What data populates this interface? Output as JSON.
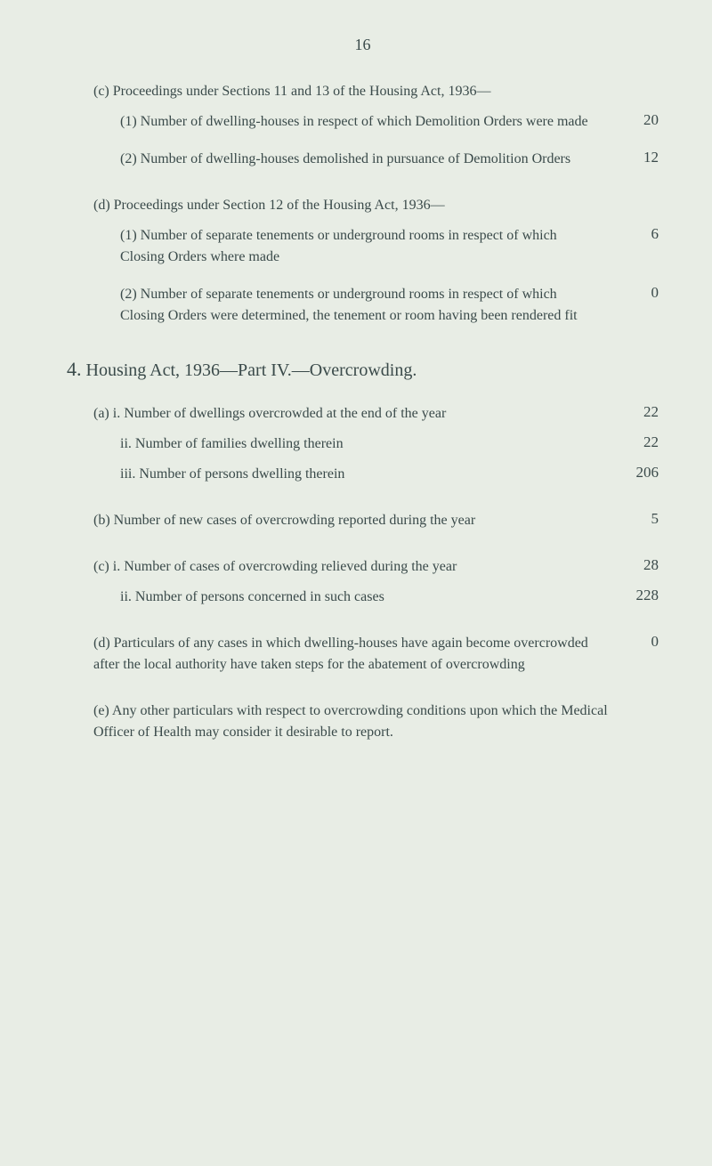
{
  "page_number": "16",
  "section_c": {
    "label": "(c)",
    "title": "Proceedings under Sections 11 and 13 of the Housing Act, 1936—",
    "items": [
      {
        "label": "(1)",
        "text": "Number of dwelling-houses in respect of which Demolition Orders were made",
        "value": "20"
      },
      {
        "label": "(2)",
        "text": "Number of dwelling-houses demolished in pursuance of Demolition Orders",
        "value": "12"
      }
    ]
  },
  "section_d": {
    "label": "(d)",
    "title": "Proceedings under Section 12 of the Housing Act, 1936—",
    "items": [
      {
        "label": "(1)",
        "text": "Number of separate tenements or underground rooms in respect of which Closing Orders where made",
        "value": "6"
      },
      {
        "label": "(2)",
        "text": "Number of separate tenements or underground rooms in respect of which Closing Orders were determined, the tenement or room having been rendered fit",
        "value": "0"
      }
    ]
  },
  "section_4": {
    "number": "4.",
    "title": "Housing Act, 1936—Part IV.—Overcrowding.",
    "sub_a": {
      "label": "(a)",
      "items": [
        {
          "label": "i.",
          "text": "Number of dwellings overcrowded at the end of the year",
          "value": "22"
        },
        {
          "label": "ii.",
          "text": "Number of families dwelling therein",
          "value": "22"
        },
        {
          "label": "iii.",
          "text": "Number of persons dwelling therein",
          "value": "206"
        }
      ]
    },
    "sub_b": {
      "label": "(b)",
      "text": "Number of new cases of overcrowding reported during the year",
      "value": "5"
    },
    "sub_c": {
      "label": "(c)",
      "items": [
        {
          "label": "i.",
          "text": "Number of cases of overcrowding relieved during the year",
          "value": "28"
        },
        {
          "label": "ii.",
          "text": "Number of persons concerned in such cases",
          "value": "228"
        }
      ]
    },
    "sub_d": {
      "label": "(d)",
      "text": "Particulars of any cases in which dwelling-houses have again become overcrowded after the local authority have taken steps for the abatement of overcrowding",
      "value": "0"
    },
    "sub_e": {
      "label": "(e)",
      "text": "Any other particulars with respect to overcrowding conditions upon which the Medical Officer of Health may consider it desirable to report."
    }
  }
}
